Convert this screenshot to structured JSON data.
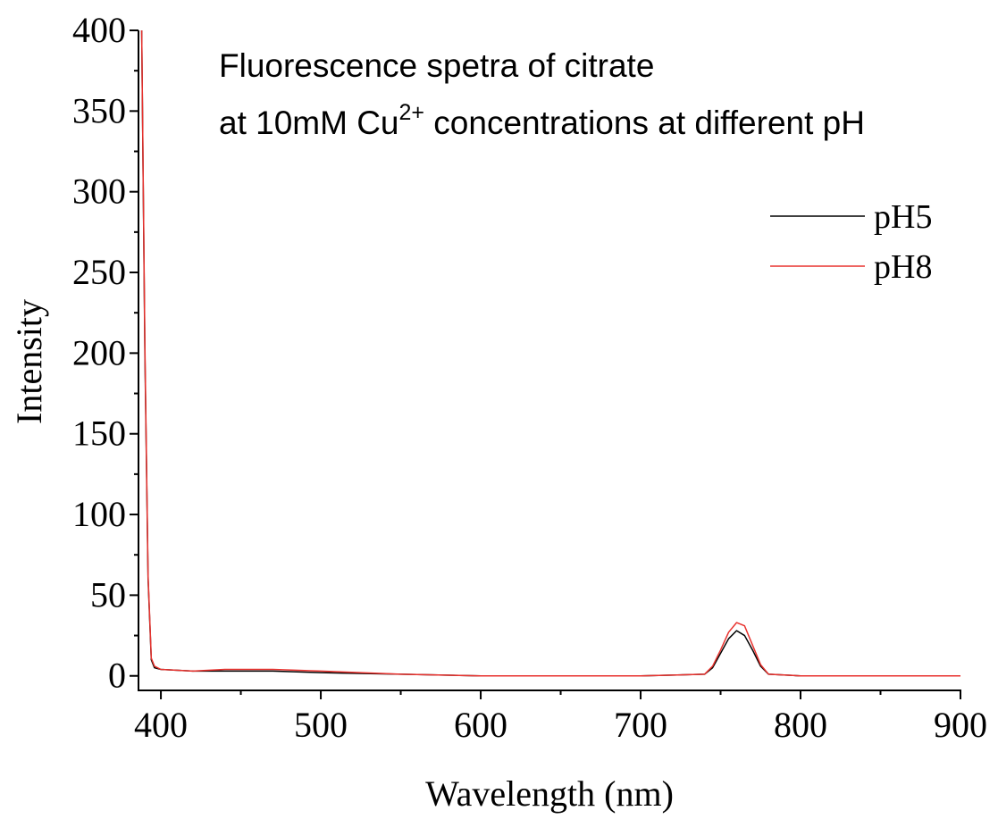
{
  "chart_data": {
    "type": "line",
    "title": "Fluorescence spetra of citrate",
    "subtitle": {
      "text": "at 10mM Cu",
      "superscript": "2+",
      "rest": " concentrations at different pH"
    },
    "x_label": "Wavelength (nm)",
    "y_label": "Intensity",
    "xlim": [
      386,
      900
    ],
    "ylim": [
      -9,
      400
    ],
    "xticks": [
      400,
      500,
      600,
      700,
      800,
      900
    ],
    "yticks": [
      0,
      50,
      100,
      150,
      200,
      250,
      300,
      350,
      400
    ],
    "legend": "upper right",
    "x": [
      388,
      390,
      392,
      394,
      396,
      400,
      420,
      440,
      470,
      500,
      550,
      600,
      700,
      740,
      745,
      750,
      755,
      760,
      765,
      770,
      775,
      780,
      800,
      900
    ],
    "series": [
      {
        "name": "pH5",
        "color": "#000000",
        "values": [
          400,
          200,
          60,
          10,
          5,
          4,
          3,
          3,
          3,
          2,
          1,
          0,
          0,
          1,
          5,
          14,
          23,
          28,
          25,
          16,
          6,
          1,
          0,
          0
        ]
      },
      {
        "name": "pH8",
        "color": "#e8322e",
        "values": [
          400,
          205,
          62,
          11,
          6,
          4,
          3,
          4,
          4,
          3,
          1,
          0,
          0,
          1,
          6,
          16,
          27,
          33,
          31,
          19,
          7,
          1,
          0,
          0
        ]
      }
    ]
  }
}
